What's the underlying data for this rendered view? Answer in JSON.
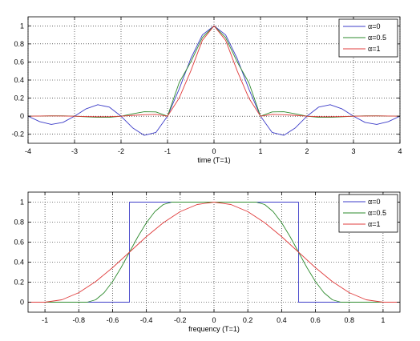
{
  "chart_data": [
    {
      "type": "line",
      "title": "",
      "xlabel": "time (T=1)",
      "ylabel": "",
      "xlim": [
        -4,
        4
      ],
      "ylim": [
        -0.3,
        1.1
      ],
      "xticks": [
        "-4",
        "-3",
        "-2",
        "-1",
        "0",
        "1",
        "2",
        "3",
        "4"
      ],
      "yticks": [
        "-0.2",
        "0",
        "0.2",
        "0.4",
        "0.6",
        "0.8",
        "1"
      ],
      "grid": true,
      "legend": "top-right",
      "series": [
        {
          "name": "α=0",
          "color": "#3c3cc8",
          "x": [
            -4,
            -3.75,
            -3.5,
            -3.25,
            -3,
            -2.75,
            -2.5,
            -2.25,
            -2,
            -1.75,
            -1.5,
            -1.25,
            -1,
            -0.75,
            -0.5,
            -0.25,
            0,
            0.25,
            0.5,
            0.75,
            1,
            1.25,
            1.5,
            1.75,
            2,
            2.25,
            2.5,
            2.75,
            3,
            3.25,
            3.5,
            3.75,
            4
          ],
          "values": [
            0,
            -0.06,
            -0.091,
            -0.069,
            0,
            0.082,
            0.127,
            0.1,
            0,
            -0.129,
            -0.212,
            -0.18,
            0,
            0.3,
            0.637,
            0.9,
            1,
            0.9,
            0.637,
            0.3,
            0,
            -0.18,
            -0.212,
            -0.129,
            0,
            0.1,
            0.127,
            0.082,
            0,
            -0.069,
            -0.091,
            -0.06,
            0
          ]
        },
        {
          "name": "α=0.5",
          "color": "#2e8b2e",
          "x": [
            -4,
            -3.75,
            -3.5,
            -3.25,
            -3,
            -2.75,
            -2.5,
            -2.25,
            -2,
            -1.75,
            -1.5,
            -1.25,
            -1,
            -0.75,
            -0.5,
            -0.25,
            0,
            0.25,
            0.5,
            0.75,
            1,
            1.25,
            1.5,
            1.75,
            2,
            2.25,
            2.5,
            2.75,
            3,
            3.25,
            3.5,
            3.75,
            4
          ],
          "values": [
            0,
            0.002,
            0.004,
            0.004,
            0,
            -0.007,
            -0.013,
            -0.013,
            0,
            0.026,
            0.049,
            0.047,
            0,
            0.37,
            0.6,
            0.87,
            1,
            0.87,
            0.6,
            0.37,
            0,
            0.047,
            0.049,
            0.026,
            0,
            -0.013,
            -0.013,
            -0.007,
            0,
            0.004,
            0.004,
            0.002,
            0
          ]
        },
        {
          "name": "α=1",
          "color": "#e03c3c",
          "x": [
            -4,
            -3.75,
            -3.5,
            -3.25,
            -3,
            -2.75,
            -2.5,
            -2.25,
            -2,
            -1.75,
            -1.5,
            -1.25,
            -1,
            -0.75,
            -0.5,
            -0.25,
            0,
            0.25,
            0.5,
            0.75,
            1,
            1.25,
            1.5,
            1.75,
            2,
            2.25,
            2.5,
            2.75,
            3,
            3.25,
            3.5,
            3.75,
            4
          ],
          "values": [
            0,
            0.002,
            0.003,
            0.002,
            0,
            -0.004,
            -0.006,
            -0.005,
            0,
            0.009,
            0.016,
            0.02,
            0,
            0.2,
            0.5,
            0.84,
            1,
            0.84,
            0.5,
            0.2,
            0,
            0.02,
            0.016,
            0.009,
            0,
            -0.005,
            -0.006,
            -0.004,
            0,
            0.002,
            0.003,
            0.002,
            0
          ]
        }
      ]
    },
    {
      "type": "line",
      "title": "",
      "xlabel": "frequency (T=1)",
      "ylabel": "",
      "xlim": [
        -1.1,
        1.1
      ],
      "ylim": [
        -0.1,
        1.1
      ],
      "xticks": [
        "-1",
        "-0.8",
        "-0.6",
        "-0.4",
        "-0.2",
        "0",
        "0.2",
        "0.4",
        "0.6",
        "0.8",
        "1"
      ],
      "yticks": [
        "0",
        "0.2",
        "0.4",
        "0.6",
        "0.8",
        "1"
      ],
      "grid": true,
      "legend": "top-right",
      "series": [
        {
          "name": "α=0",
          "color": "#3c3cc8",
          "x": [
            -1.1,
            -0.5,
            -0.5,
            0.5,
            0.5,
            1.1
          ],
          "values": [
            0,
            0,
            1,
            1,
            0,
            0
          ]
        },
        {
          "name": "α=0.5",
          "color": "#2e8b2e",
          "x": [
            -1.1,
            -0.75,
            -0.7,
            -0.65,
            -0.6,
            -0.55,
            -0.5,
            -0.45,
            -0.4,
            -0.35,
            -0.3,
            -0.25,
            0,
            0.25,
            0.3,
            0.35,
            0.4,
            0.45,
            0.5,
            0.55,
            0.6,
            0.65,
            0.7,
            0.75,
            1.1
          ],
          "values": [
            0,
            0,
            0.024,
            0.095,
            0.206,
            0.345,
            0.5,
            0.655,
            0.794,
            0.905,
            0.976,
            1,
            1,
            1,
            0.976,
            0.905,
            0.794,
            0.655,
            0.5,
            0.345,
            0.206,
            0.095,
            0.024,
            0,
            0
          ]
        },
        {
          "name": "α=1",
          "color": "#e03c3c",
          "x": [
            -1.1,
            -1,
            -0.9,
            -0.8,
            -0.7,
            -0.6,
            -0.5,
            -0.4,
            -0.3,
            -0.2,
            -0.1,
            0,
            0.1,
            0.2,
            0.3,
            0.4,
            0.5,
            0.6,
            0.7,
            0.8,
            0.9,
            1,
            1.1
          ],
          "values": [
            0,
            0,
            0.024,
            0.095,
            0.206,
            0.345,
            0.5,
            0.655,
            0.794,
            0.905,
            0.976,
            1,
            0.976,
            0.905,
            0.794,
            0.655,
            0.5,
            0.345,
            0.206,
            0.095,
            0.024,
            0,
            0
          ]
        }
      ]
    }
  ]
}
